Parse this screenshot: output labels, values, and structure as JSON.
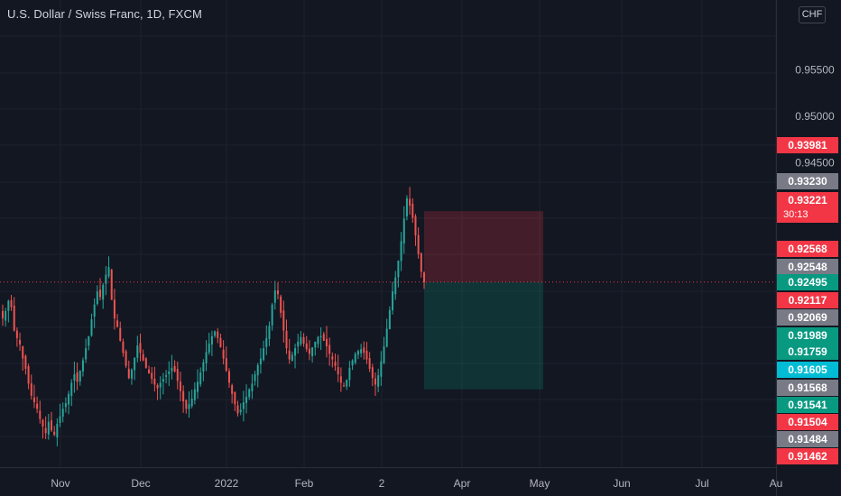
{
  "header": {
    "symbol_title": "U.S. Dollar / Swiss Franc, 1D, FXCM",
    "currency": "CHF"
  },
  "colors": {
    "background": "#131722",
    "grid": "#1e222d",
    "axis_text": "#b2b5be",
    "up_candle": "#26a69a",
    "down_candle": "#ef5350",
    "stop_zone": "#f23645",
    "target_zone": "#089981",
    "crosshair": "#f23645"
  },
  "chart_data": {
    "type": "candlestick",
    "title": "U.S. Dollar / Swiss Franc, 1D, FXCM",
    "y_axis": {
      "range": [
        0.9135,
        0.9588
      ],
      "tick_labels": [
        "0.95500",
        "0.95000",
        "0.94500"
      ],
      "ticks": [
        0.955,
        0.95,
        0.945
      ]
    },
    "x_axis": {
      "tick_labels": [
        "Nov",
        "Dec",
        "2022",
        "Feb",
        "2",
        "Apr",
        "May",
        "Jun",
        "Jul",
        "Au"
      ]
    },
    "candles_approx": {
      "start": "2021-10-06",
      "end": "2022-03-16",
      "closes": [
        0.9283,
        0.9291,
        0.9302,
        0.9295,
        0.927,
        0.9262,
        0.9255,
        0.924,
        0.9229,
        0.9213,
        0.92,
        0.9193,
        0.9186,
        0.9175,
        0.9167,
        0.916,
        0.9172,
        0.9163,
        0.9158,
        0.917,
        0.9178,
        0.9186,
        0.9192,
        0.9202,
        0.9214,
        0.9223,
        0.9215,
        0.9227,
        0.9238,
        0.9251,
        0.9264,
        0.9282,
        0.9298,
        0.9312,
        0.9306,
        0.9319,
        0.933,
        0.9338,
        0.9303,
        0.9283,
        0.9274,
        0.9259,
        0.9246,
        0.9232,
        0.9219,
        0.9228,
        0.9241,
        0.9254,
        0.9246,
        0.9238,
        0.923,
        0.9224,
        0.9218,
        0.9212,
        0.9208,
        0.9214,
        0.9218,
        0.9222,
        0.9226,
        0.923,
        0.9226,
        0.9216,
        0.9205,
        0.9194,
        0.9186,
        0.9191,
        0.9197,
        0.9207,
        0.9215,
        0.9225,
        0.9236,
        0.9247,
        0.9256,
        0.9264,
        0.9269,
        0.9262,
        0.9252,
        0.924,
        0.9227,
        0.9214,
        0.9202,
        0.9191,
        0.9181,
        0.9185,
        0.9193,
        0.9199,
        0.9207,
        0.9213,
        0.9223,
        0.9233,
        0.924,
        0.9251,
        0.9262,
        0.9275,
        0.9298,
        0.9313,
        0.9309,
        0.9289,
        0.927,
        0.9251,
        0.9239,
        0.9244,
        0.9251,
        0.9258,
        0.9263,
        0.9256,
        0.925,
        0.9245,
        0.9252,
        0.9258,
        0.9263,
        0.9264,
        0.9259,
        0.9253,
        0.9245,
        0.9239,
        0.9232,
        0.9223,
        0.9214,
        0.9211,
        0.9217,
        0.923,
        0.9238,
        0.9245,
        0.9248,
        0.925,
        0.9246,
        0.9239,
        0.9229,
        0.9219,
        0.9212,
        0.9222,
        0.9237,
        0.9253,
        0.9272,
        0.9292,
        0.9312,
        0.9327,
        0.9345,
        0.9366,
        0.939,
        0.9412,
        0.9404,
        0.9391,
        0.9372,
        0.9352,
        0.9333,
        0.9322
      ]
    },
    "position": {
      "side": "short",
      "entry": 0.93221,
      "stop": 0.93981,
      "target": 0.92069
    },
    "price_labels": [
      {
        "text": "0.93981",
        "value": 0.93981,
        "color": "#f23645"
      },
      {
        "text": "0.93230",
        "value": 0.9323,
        "color": "#787b86"
      },
      {
        "text": "0.93221",
        "value": 0.93221,
        "color": "#f23645",
        "sub": "30:13"
      },
      {
        "text": "0.92568",
        "value": 0.92568,
        "color": "#f23645"
      },
      {
        "text": "0.92548",
        "value": 0.92548,
        "color": "#787b86"
      },
      {
        "text": "0.92495",
        "value": 0.92495,
        "color": "#089981"
      },
      {
        "text": "0.92117",
        "value": 0.92117,
        "color": "#f23645"
      },
      {
        "text": "0.92069",
        "value": 0.92069,
        "color": "#787b86"
      },
      {
        "text": "0.91989",
        "value": 0.91989,
        "color": "#089981"
      },
      {
        "text": "0.91759",
        "value": 0.91759,
        "color": "#089981"
      },
      {
        "text": "0.91605",
        "value": 0.91605,
        "color": "#00bcd4"
      },
      {
        "text": "0.91568",
        "value": 0.91568,
        "color": "#787b86"
      },
      {
        "text": "0.91541",
        "value": 0.91541,
        "color": "#089981"
      },
      {
        "text": "0.91504",
        "value": 0.91504,
        "color": "#f23645"
      },
      {
        "text": "0.91484",
        "value": 0.91484,
        "color": "#787b86"
      },
      {
        "text": "0.91462",
        "value": 0.91462,
        "color": "#f23645"
      }
    ]
  }
}
